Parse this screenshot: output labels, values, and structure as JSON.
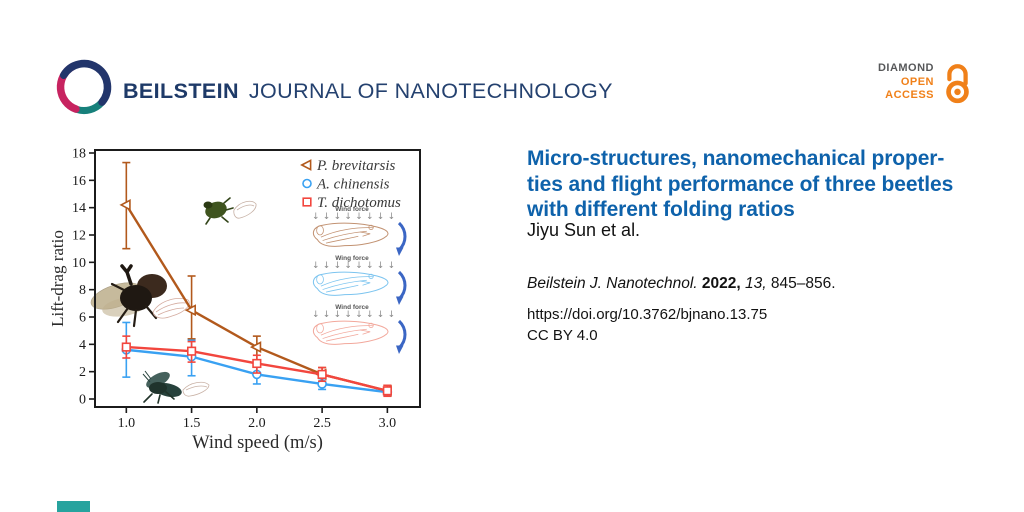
{
  "header": {
    "journal_name_bold": "BEILSTEIN",
    "journal_name_rest": "JOURNAL OF NANOTECHNOLOGY",
    "badge": {
      "line1": "DIAMOND",
      "line2": "OPEN",
      "line3": "ACCESS"
    }
  },
  "article": {
    "title_lines": [
      "Micro-structures, nanomechanical proper-",
      "ties and flight performance of three beetles",
      "with different folding ratios"
    ],
    "authors": "Jiyu Sun et al.",
    "citation": {
      "journal": "Beilstein J. Nanotechnol.",
      "year": "2022,",
      "volume": "13,",
      "pages": "845–856."
    },
    "doi": "https://doi.org/10.3762/bjnano.13.75",
    "license": "CC BY 4.0"
  },
  "chart_data": {
    "type": "line",
    "x": [
      1.0,
      1.5,
      2.0,
      2.5,
      3.0
    ],
    "xticks": [
      1.0,
      1.5,
      2.0,
      2.5,
      3.0
    ],
    "xlabel": "Wind speed (m/s)",
    "ylabel": "Lift-drag ratio",
    "xlim": [
      0.76,
      3.25
    ],
    "ylim": [
      0,
      18
    ],
    "ytick_step": 2,
    "grid": false,
    "legend_position": "top-right-inside",
    "series": [
      {
        "name": "P. brevitarsis",
        "marker": "triangle-left",
        "color": "#b2591c",
        "values": [
          14.2,
          6.5,
          3.8,
          1.8,
          0.6
        ],
        "err_low": [
          3.2,
          2.1,
          1.0,
          0.5,
          0.3
        ],
        "err_high": [
          3.1,
          2.5,
          0.8,
          0.5,
          0.4
        ]
      },
      {
        "name": "A. chinensis",
        "marker": "circle",
        "color": "#39a1f2",
        "values": [
          3.6,
          3.1,
          1.8,
          1.1,
          0.5
        ],
        "err_low": [
          2.0,
          1.4,
          0.7,
          0.4,
          0.2
        ],
        "err_high": [
          2.0,
          1.2,
          0.8,
          0.4,
          0.2
        ]
      },
      {
        "name": "T. dichotomus",
        "marker": "square",
        "color": "#f2463e",
        "values": [
          3.8,
          3.5,
          2.6,
          1.8,
          0.6
        ],
        "err_low": [
          0.8,
          0.8,
          0.7,
          0.5,
          0.4
        ],
        "err_high": [
          0.8,
          0.7,
          0.6,
          0.5,
          0.4
        ]
      }
    ]
  },
  "figure": {
    "wing_panels": [
      {
        "label": "Wind force",
        "color": "#c29272"
      },
      {
        "label": "Wing force",
        "color": "#7cc4ef"
      },
      {
        "label": "Wind force",
        "color": "#f2a89c"
      }
    ],
    "rotation_arrow_color": "#3b66c4"
  },
  "colors": {
    "brand_navy": "#1e3a68",
    "logo_pink": "#c72360",
    "logo_teal": "#17807b",
    "badge_orange": "#f08019",
    "badge_gray": "#57585a",
    "title_blue": "#0e62ab",
    "footer_accent": "#27a39e"
  }
}
